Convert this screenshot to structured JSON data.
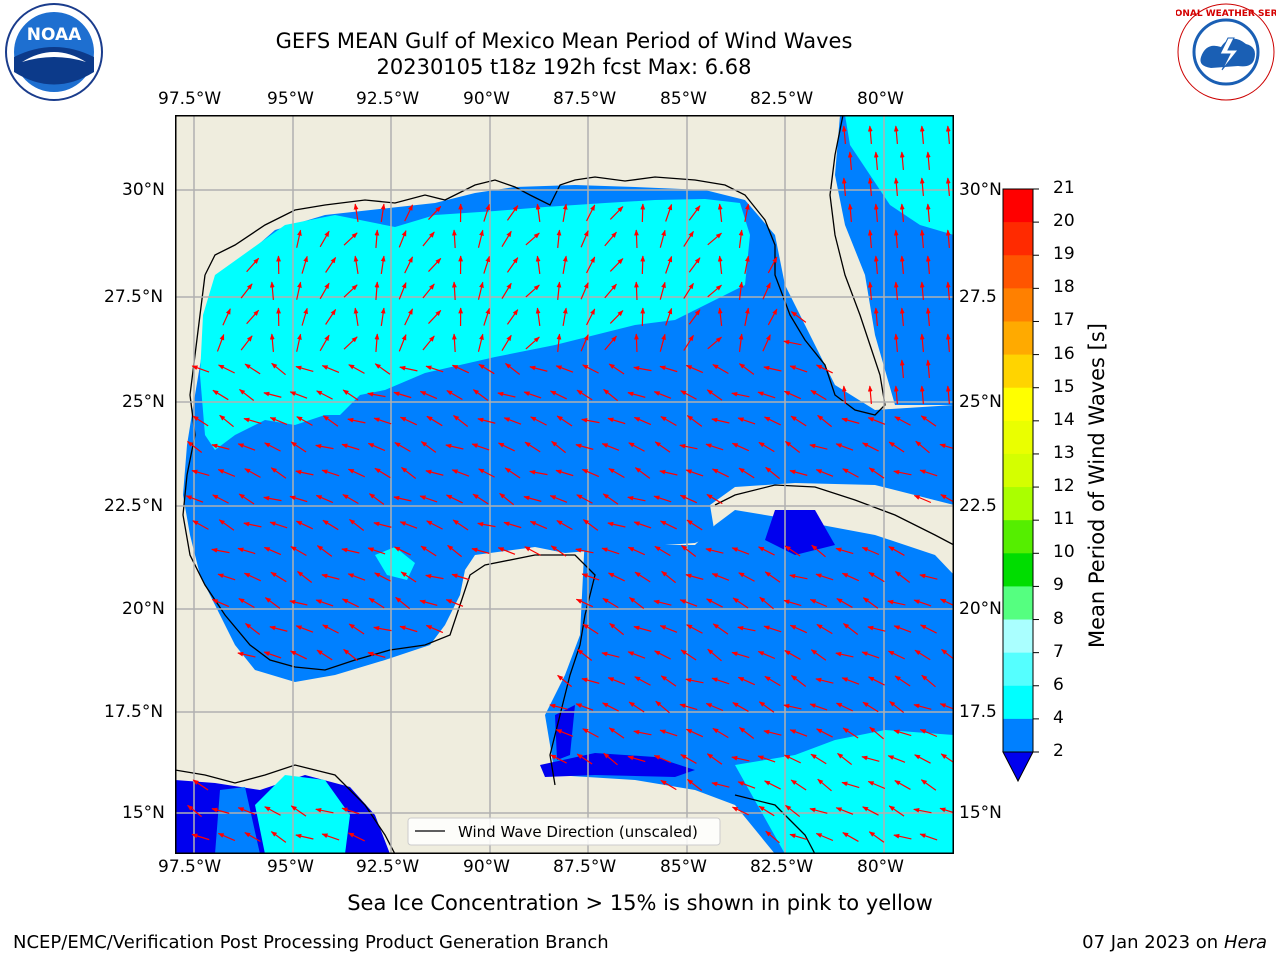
{
  "header": {
    "title_line1": "GEFS MEAN Gulf of Mexico Mean Period of Wind Waves",
    "title_line2": "20230105 t18z 192h fcst   Max: 6.68"
  },
  "logos": {
    "left": {
      "name": "noaa-logo",
      "text": "NOAA"
    },
    "right": {
      "name": "nws-logo",
      "text": "NATIONAL WEATHER SERVICE"
    }
  },
  "map": {
    "lon_ticks_top": [
      "97.5°W",
      "95°W",
      "92.5°W",
      "90°W",
      "87.5°W",
      "85°W",
      "82.5°W",
      "80°W"
    ],
    "lon_ticks_bottom": [
      "97.5°W",
      "95°W",
      "92.5°W",
      "90°W",
      "87.5°W",
      "85°W",
      "82.5°W",
      "80°W"
    ],
    "lat_ticks_left": [
      "30°N",
      "27.5°N",
      "25°N",
      "22.5°N",
      "20°N",
      "17.5°N",
      "15°N"
    ],
    "lat_ticks_right": [
      "30°N",
      "27.5",
      "25°N",
      "22.5",
      "20°N",
      "17.5",
      "15°N"
    ],
    "legend_label": "Wind Wave Direction (unscaled)",
    "colors": {
      "land": "#efedde",
      "low": "#0080ff",
      "mid": "#00ffff",
      "deep": "#0000ee",
      "arrow": "#ff0000",
      "grid": "#b0b0b0"
    }
  },
  "colorbar": {
    "label": "Mean Period of Wind Waves [s]",
    "ticks": [
      "21",
      "20",
      "19",
      "18",
      "17",
      "16",
      "15",
      "14",
      "13",
      "12",
      "11",
      "10",
      "9",
      "8",
      "7",
      "6",
      "4",
      "2"
    ],
    "colors": [
      "#ff0000",
      "#ff2a00",
      "#ff5500",
      "#ff8000",
      "#ffaa00",
      "#ffd400",
      "#ffff00",
      "#eaff00",
      "#d4ff00",
      "#aaff00",
      "#55ee00",
      "#00dd00",
      "#55ff80",
      "#aaffff",
      "#55ffff",
      "#00ffff",
      "#0080ff"
    ],
    "extend_color": "#0000ee"
  },
  "footer": {
    "ice_note": "Sea Ice Concentration > 15% is shown in pink to yellow",
    "credit": "NCEP/EMC/Verification Post Processing Product Generation Branch",
    "date": "07 Jan 2023 on ",
    "host": "Hera"
  }
}
